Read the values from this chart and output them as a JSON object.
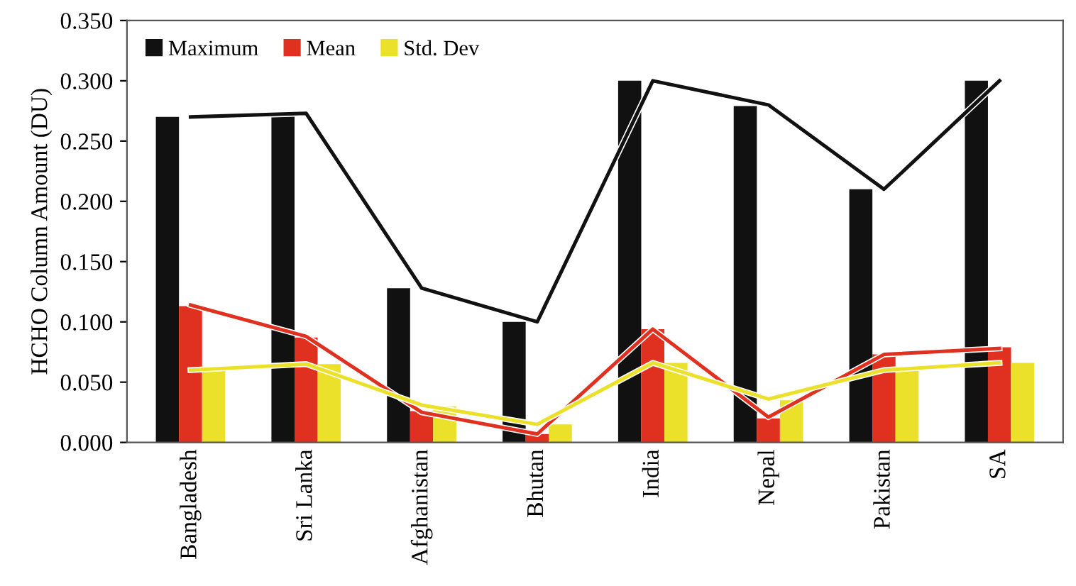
{
  "chart_data": {
    "type": "bar",
    "ylabel": "HCHO Column Amount (DU)",
    "categories": [
      "Bangladesh",
      "Sri Lanka",
      "Afghanistan",
      "Bhutan",
      "India",
      "Nepal",
      "Pakistan",
      "SA"
    ],
    "series": [
      {
        "name": "Maximum",
        "color": "#111111",
        "values": [
          0.27,
          0.274,
          0.128,
          0.1,
          0.3,
          0.279,
          0.21,
          0.3
        ]
      },
      {
        "name": "Mean",
        "color": "#e03020",
        "values": [
          0.113,
          0.087,
          0.026,
          0.007,
          0.094,
          0.02,
          0.073,
          0.079
        ]
      },
      {
        "name": "Std. Dev",
        "color": "#ece12a",
        "values": [
          0.062,
          0.065,
          0.03,
          0.015,
          0.066,
          0.035,
          0.062,
          0.066
        ]
      },
      {
        "type": "line",
        "color": "#111111",
        "values": [
          0.27,
          0.273,
          0.128,
          0.1,
          0.3,
          0.28,
          0.21,
          0.3
        ]
      },
      {
        "type": "line",
        "color": "#e03020",
        "values": [
          0.114,
          0.088,
          0.025,
          0.007,
          0.094,
          0.021,
          0.073,
          0.078
        ]
      },
      {
        "type": "line",
        "color": "#ece12a",
        "values": [
          0.06,
          0.065,
          0.031,
          0.015,
          0.066,
          0.036,
          0.06,
          0.066
        ]
      }
    ],
    "ylim": [
      0,
      0.35
    ],
    "yticks": [
      {
        "value": 0,
        "label": "0.000"
      },
      {
        "value": 0.05,
        "label": "0.050"
      },
      {
        "value": 0.1,
        "label": "0.100"
      },
      {
        "value": 0.15,
        "label": "0.150"
      },
      {
        "value": 0.2,
        "label": "0.200"
      },
      {
        "value": 0.25,
        "label": "0.250"
      },
      {
        "value": 0.3,
        "label": "0.300"
      },
      {
        "value": 0.35,
        "label": "0.350"
      }
    ],
    "legend": "top left",
    "grid": false
  }
}
